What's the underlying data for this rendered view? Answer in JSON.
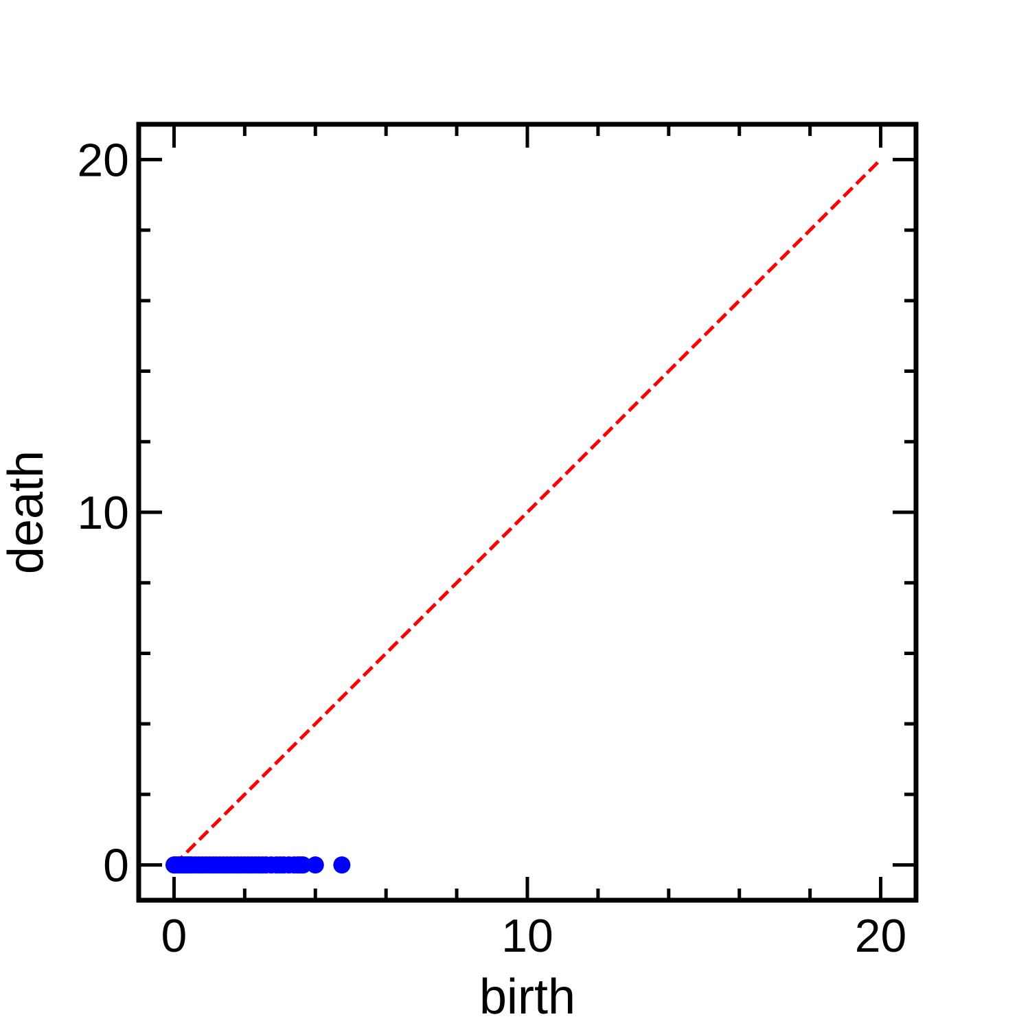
{
  "chart_data": {
    "type": "scatter",
    "title": "",
    "xlabel": "birth",
    "ylabel": "death",
    "xlim": [
      -1,
      21
    ],
    "ylim": [
      -1,
      21
    ],
    "xticks": [
      0,
      10,
      20
    ],
    "yticks": [
      0,
      10,
      20
    ],
    "minor_tick_step": 2,
    "grid": false,
    "legend": "none",
    "series": [
      {
        "kind": "points",
        "color": "#0000ff",
        "x": [
          0.0,
          0.05,
          0.1,
          0.15,
          0.2,
          0.25,
          0.3,
          0.35,
          0.4,
          0.45,
          0.5,
          0.6,
          0.7,
          0.8,
          0.9,
          1.0,
          1.1,
          1.2,
          1.3,
          1.4,
          1.5,
          1.6,
          1.7,
          1.8,
          1.9,
          2.0,
          2.1,
          2.2,
          2.3,
          2.4,
          2.5,
          2.6,
          2.75,
          2.9,
          3.0,
          3.1,
          3.25,
          3.4,
          3.5,
          3.55,
          3.6,
          3.65,
          4.0,
          4.75
        ],
        "y": [
          0,
          0,
          0,
          0,
          0,
          0,
          0,
          0,
          0,
          0,
          0,
          0,
          0,
          0,
          0,
          0,
          0,
          0,
          0,
          0,
          0,
          0,
          0,
          0,
          0,
          0,
          0,
          0,
          0,
          0,
          0,
          0,
          0,
          0,
          0,
          0,
          0,
          0,
          0,
          0,
          0,
          0,
          0,
          0
        ]
      },
      {
        "kind": "diagonal",
        "color": "#ff0000",
        "style": "dashed",
        "x": [
          0,
          20
        ],
        "y": [
          0,
          20
        ]
      }
    ]
  }
}
